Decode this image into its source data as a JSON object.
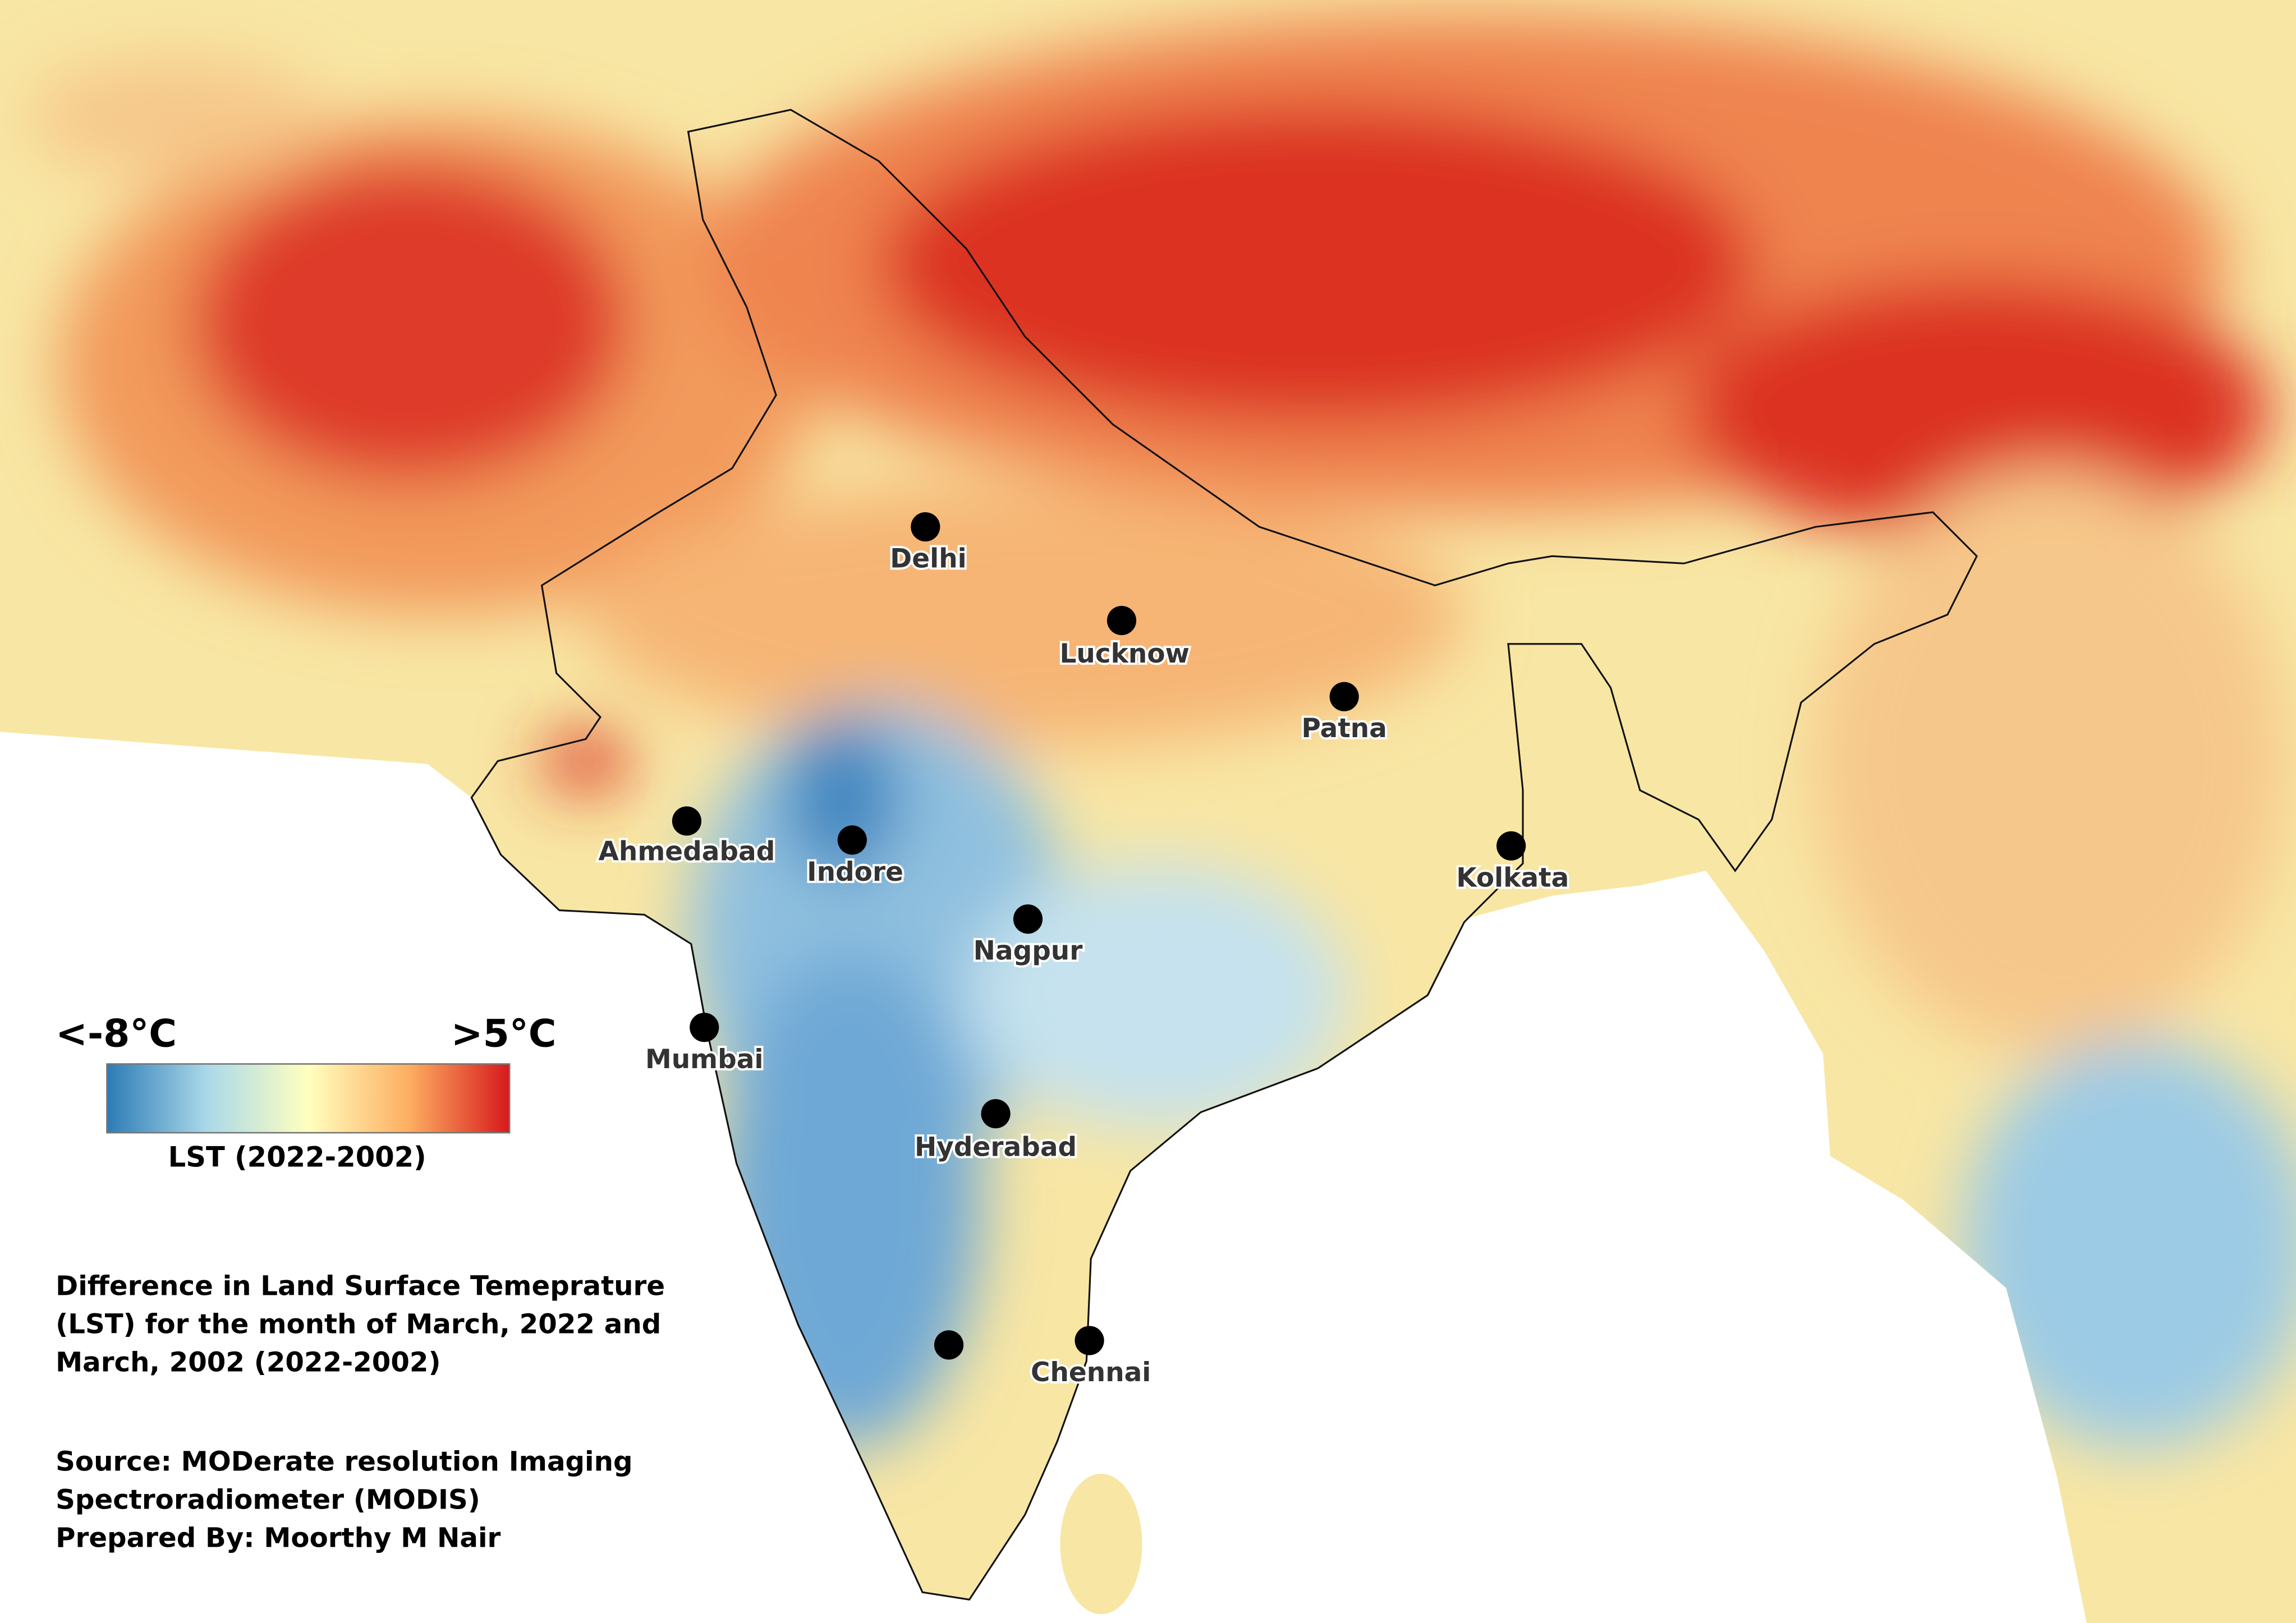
{
  "legend": {
    "min_label": "<-8°C",
    "max_label": ">5°C",
    "title": "LST (2022-2002)"
  },
  "cities": [
    "Delhi",
    "Lucknow",
    "Patna",
    "Ahmedabad",
    "Indore",
    "Kolkata",
    "Nagpur",
    "Mumbai",
    "Hyderabad",
    "Chennai"
  ],
  "description": {
    "title_lines": [
      "Difference in Land Surface Temeprature",
      "(LST) for the month of March, 2022 and",
      "March, 2002 (2022-2002)"
    ],
    "source_lines": [
      "Source: MODerate resolution Imaging",
      "Spectroradiometer (MODIS)",
      "Prepared By: Moorthy M Nair"
    ]
  }
}
